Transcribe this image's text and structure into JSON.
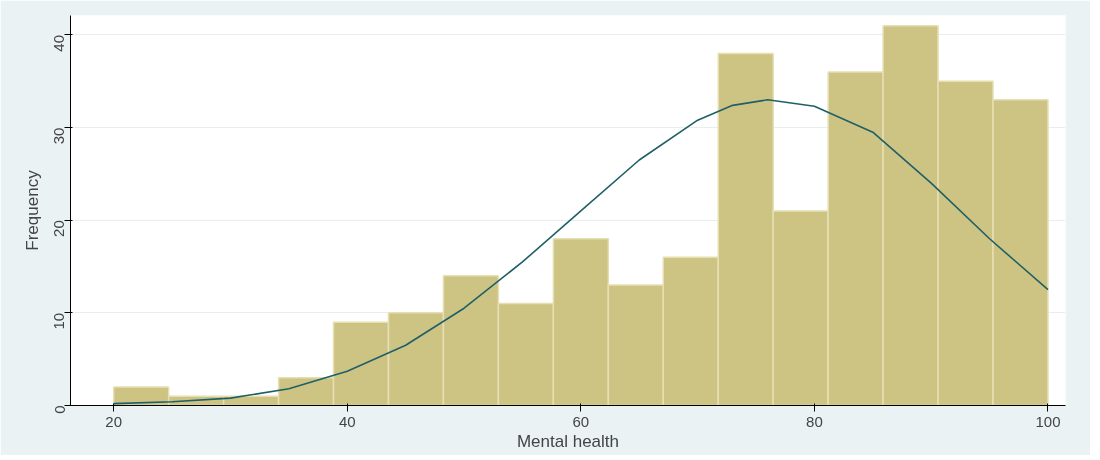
{
  "chart_data": {
    "type": "histogram",
    "xlabel": "Mental health",
    "ylabel": "Frequency",
    "bins": [
      20,
      24.706,
      29.412,
      34.118,
      38.824,
      43.529,
      48.235,
      52.941,
      57.647,
      62.353,
      67.059,
      71.765,
      76.471,
      81.176,
      85.882,
      90.588,
      95.294,
      100
    ],
    "values": [
      2,
      1,
      1,
      3,
      9,
      10,
      14,
      11,
      18,
      13,
      16,
      38,
      21,
      36,
      41,
      35,
      33
    ],
    "color": "#cdc383",
    "series": [
      {
        "type": "line",
        "color": "#1f6068",
        "x": [
          20,
          25,
          30,
          35,
          40,
          45,
          50,
          55,
          60,
          65,
          70,
          73,
          76,
          80,
          85,
          90,
          95,
          100
        ],
        "values": [
          0.2,
          0.4,
          0.8,
          1.8,
          3.7,
          6.5,
          10.5,
          15.5,
          21,
          26.5,
          30.8,
          32.4,
          33,
          32.3,
          29.5,
          24,
          18,
          12.5
        ]
      }
    ],
    "xlim": [
      16.3,
      101.5
    ],
    "ylim": [
      0,
      42.1
    ],
    "xticks": [
      20,
      40,
      60,
      80,
      100
    ],
    "yticks": [
      0,
      10,
      20,
      30,
      40
    ],
    "grid": "y"
  }
}
